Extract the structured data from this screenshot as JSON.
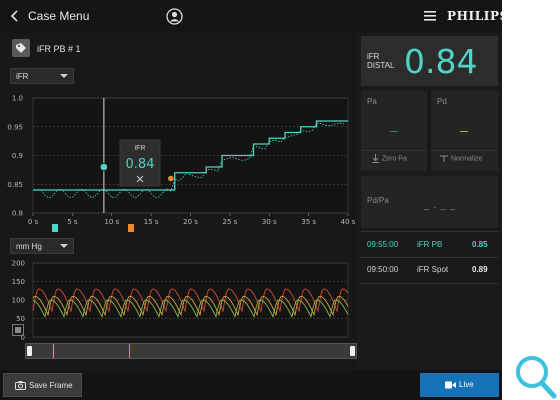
{
  "header": {
    "back_label": "Case Menu",
    "brand": "PHILIPS"
  },
  "case": {
    "title": "iFR PB # 1",
    "metric_select": "iFR",
    "unit_select": "mm Hg"
  },
  "ifr_chart": {
    "y_ticks": [
      "1.0",
      "0.95",
      "0.9",
      "0.85",
      "0.8"
    ],
    "x_ticks": [
      "0 s",
      "5 s",
      "10 s",
      "15 s",
      "20 s",
      "25 s",
      "30 s",
      "35 s",
      "40 s"
    ],
    "cursor_popup": {
      "label": "iFR",
      "value": "0.84"
    },
    "accent": "#4fd3c4",
    "marker_color": "#e8892a"
  },
  "chart_data": {
    "type": "line",
    "x": [
      0,
      3,
      6,
      9,
      12,
      15,
      18,
      21,
      22,
      24,
      25,
      28,
      30,
      32,
      34,
      36,
      40
    ],
    "series": [
      {
        "values": [
          0.84,
          0.84,
          0.84,
          0.84,
          0.84,
          0.84,
          0.87,
          0.87,
          0.88,
          0.9,
          0.9,
          0.92,
          0.93,
          0.94,
          0.95,
          0.96,
          0.96
        ]
      }
    ],
    "ylim": [
      0.8,
      1.0
    ],
    "xlim": [
      0,
      40
    ],
    "grid": true
  },
  "pressure_chart": {
    "y_ticks": [
      "200",
      "150",
      "100",
      "50",
      "0"
    ],
    "colors": [
      "#d04a3a",
      "#d8a040",
      "#8ab84a"
    ]
  },
  "distal": {
    "label_line1": "iFR",
    "label_line2": "DISTAL",
    "value": "0.84"
  },
  "pa": {
    "label": "Pa",
    "button": "Zero Pa",
    "mark_color": "#c04545"
  },
  "pd": {
    "label": "Pd",
    "button": "Normalize",
    "mark_color": "#c8b030"
  },
  "pdpa": {
    "label": "Pd/Pa",
    "value": "_ . _ _"
  },
  "history": [
    {
      "time": "09:55:00",
      "name": "iFR PB",
      "value": "0.85",
      "active": true
    },
    {
      "time": "09:50:00",
      "name": "iFR Spot",
      "value": "0.89",
      "active": false
    }
  ],
  "footer": {
    "save_label": "Save Frame",
    "live_label": "Live"
  },
  "icons": {
    "back": "chevron-left-icon",
    "user": "user-circle-icon",
    "menu": "hamburger-menu-icon",
    "tag": "tag-icon",
    "camera": "camera-icon",
    "video": "video-camera-icon",
    "magnifier": "magnifier-icon"
  }
}
